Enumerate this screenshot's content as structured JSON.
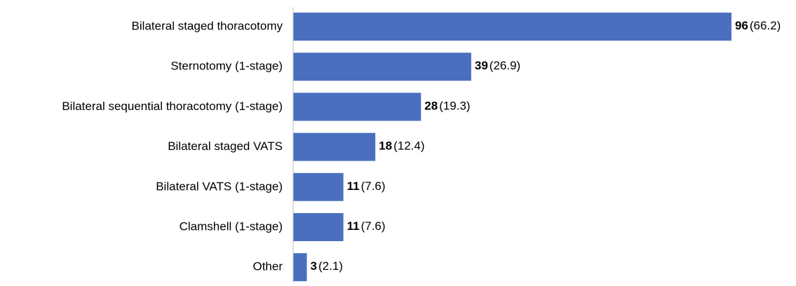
{
  "chart_data": {
    "type": "hbar",
    "categories": [
      "Bilateral staged thoracotomy",
      "Sternotomy (1-stage)",
      "Bilateral sequential thoracotomy (1-stage)",
      "Bilateral staged VATS",
      "Bilateral VATS (1-stage)",
      "Clamshell (1-stage)",
      "Other"
    ],
    "values": [
      96,
      39,
      28,
      18,
      11,
      11,
      3
    ],
    "shares": [
      66.2,
      26.9,
      19.3,
      12.4,
      7.6,
      7.6,
      2.1
    ],
    "share_labels": [
      "(66.2)",
      "(26.9)",
      "(19.3)",
      "(12.4)",
      "(7.6)",
      "(7.6)",
      "(2.1)"
    ],
    "color": "#4a6fbf",
    "xlim": [
      0,
      100
    ]
  }
}
